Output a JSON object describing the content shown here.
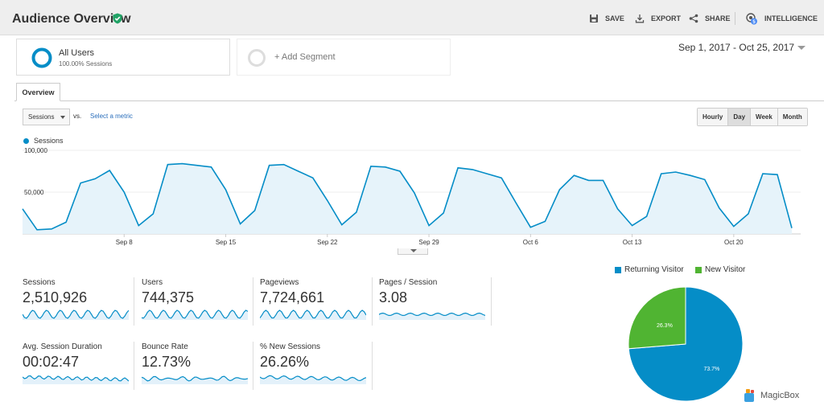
{
  "header": {
    "title": "Audience Overview",
    "save_label": "SAVE",
    "export_label": "EXPORT",
    "share_label": "SHARE",
    "intelligence_label": "INTELLIGENCE",
    "intelligence_badge": "5"
  },
  "segments": {
    "active_name": "All Users",
    "active_sub": "100.00% Sessions",
    "add_label": "+ Add Segment"
  },
  "date_range": "Sep 1, 2017 - Oct 25, 2017",
  "tabs": {
    "overview": "Overview"
  },
  "metric_selector": {
    "selected": "Sessions",
    "vs": "vs.",
    "select_link": "Select a metric"
  },
  "granularity": {
    "hourly": "Hourly",
    "day": "Day",
    "week": "Week",
    "month": "Month",
    "active": "Day"
  },
  "chart_data": {
    "type": "area",
    "legend": "Sessions",
    "color": "#058dc7",
    "y_tick_labels": [
      "100,000",
      "50,000"
    ],
    "y_ticks": [
      100000,
      50000
    ],
    "ylim": [
      0,
      100000
    ],
    "x_tick_labels": [
      "Sep 8",
      "Sep 15",
      "Sep 22",
      "Sep 29",
      "Oct 6",
      "Oct 13",
      "Oct 20"
    ],
    "x_tick_index": [
      7,
      14,
      21,
      28,
      35,
      42,
      49
    ],
    "values": [
      30000,
      5000,
      6000,
      14000,
      61000,
      66000,
      76000,
      50000,
      10000,
      24000,
      83000,
      84000,
      82000,
      80000,
      53000,
      12000,
      28000,
      82000,
      83000,
      75000,
      67000,
      40000,
      11000,
      26000,
      81000,
      80000,
      75000,
      49000,
      10000,
      25000,
      79000,
      77000,
      72000,
      67000,
      37000,
      8000,
      15000,
      53000,
      70000,
      64000,
      64000,
      30000,
      10000,
      21000,
      72000,
      74000,
      70000,
      65000,
      31000,
      9000,
      24000,
      72000,
      71000,
      7000
    ]
  },
  "metrics": [
    {
      "label": "Sessions",
      "value": "2,510,926"
    },
    {
      "label": "Users",
      "value": "744,375"
    },
    {
      "label": "Pageviews",
      "value": "7,724,661"
    },
    {
      "label": "Pages / Session",
      "value": "3.08"
    },
    {
      "label": "Avg. Session Duration",
      "value": "00:02:47"
    },
    {
      "label": "Bounce Rate",
      "value": "12.73%"
    },
    {
      "label": "% New Sessions",
      "value": "26.26%"
    }
  ],
  "pie": {
    "type": "pie",
    "slices": [
      {
        "name": "Returning Visitor",
        "value": 73.7,
        "label": "73.7%",
        "color": "#058dc7"
      },
      {
        "name": "New Visitor",
        "value": 26.3,
        "label": "26.3%",
        "color": "#50b432"
      }
    ]
  },
  "watermark": "MagicBox"
}
